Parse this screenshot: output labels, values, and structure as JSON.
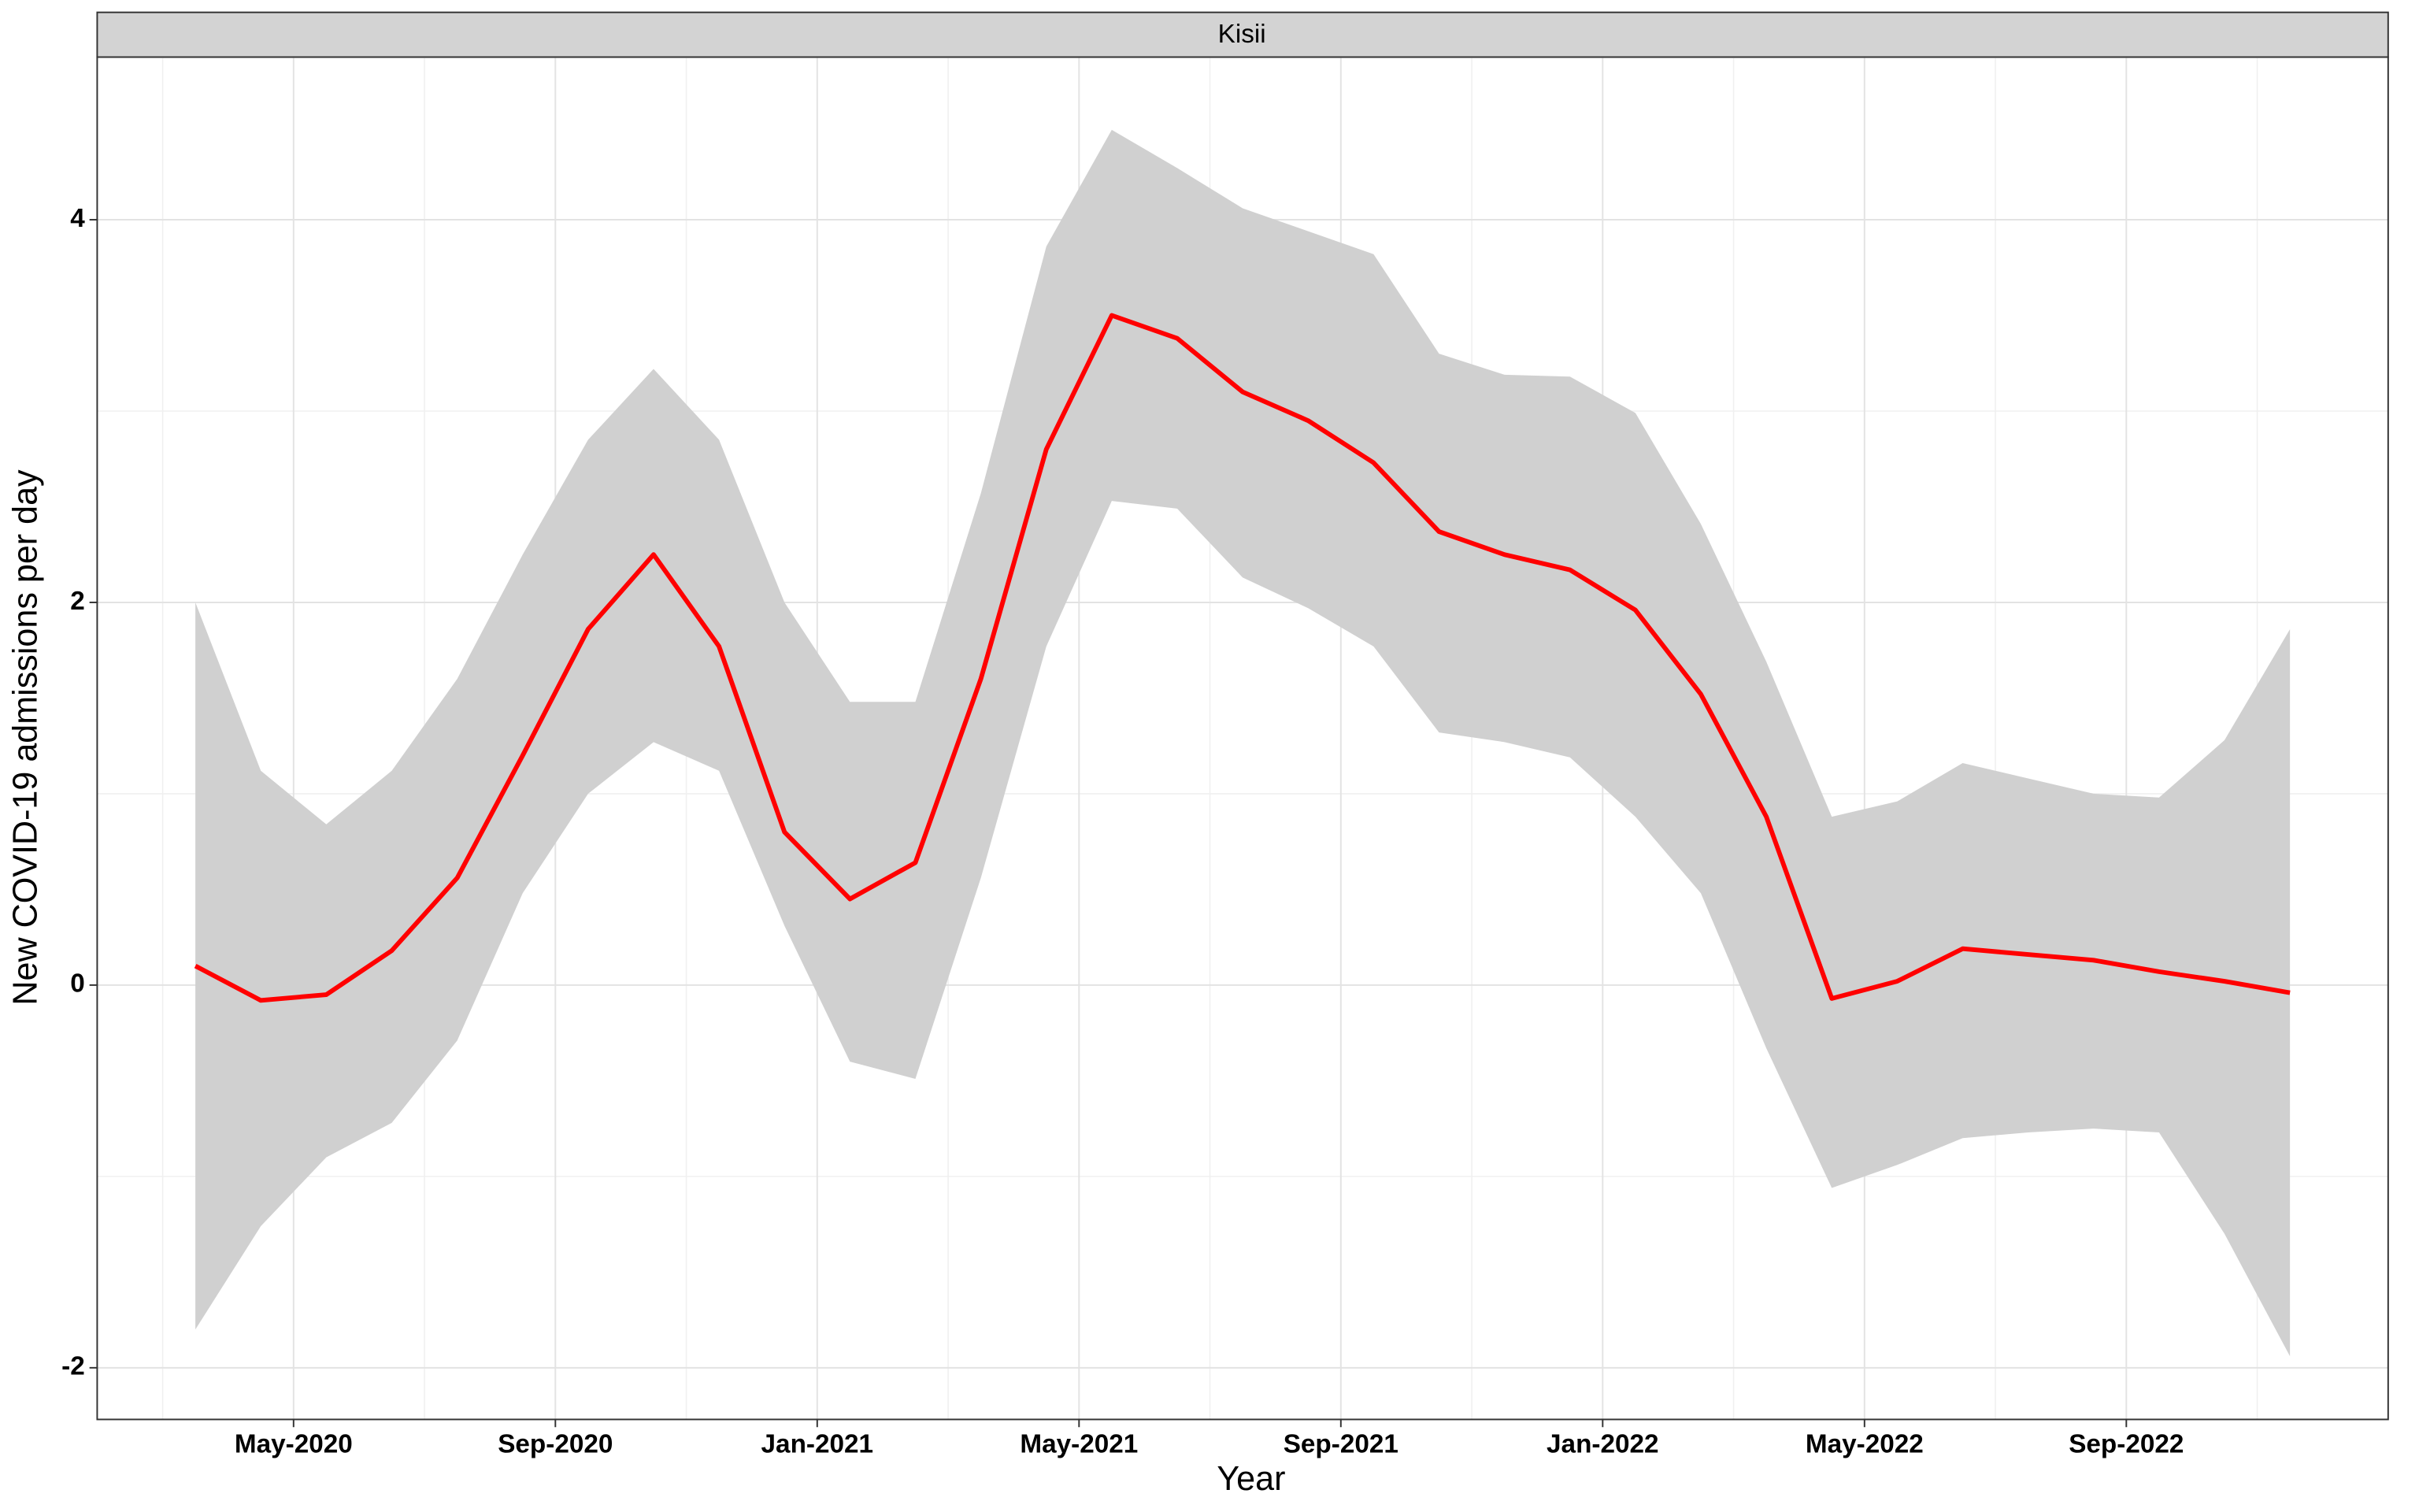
{
  "chart_data": {
    "type": "ribbon_line",
    "facet": "Kisii",
    "x_label": "Year",
    "y_label": "New COVID-19 admissions per day",
    "x": [
      "2020-03",
      "2020-04",
      "2020-05",
      "2020-06",
      "2020-07",
      "2020-08",
      "2020-09",
      "2020-10",
      "2020-11",
      "2020-12",
      "2021-01",
      "2021-02",
      "2021-03",
      "2021-04",
      "2021-05",
      "2021-06",
      "2021-07",
      "2021-08",
      "2021-09",
      "2021-10",
      "2021-11",
      "2021-12",
      "2022-01",
      "2022-02",
      "2022-03",
      "2022-04",
      "2022-05",
      "2022-06",
      "2022-07",
      "2022-08",
      "2022-09",
      "2022-10",
      "2022-11"
    ],
    "values": [
      0.1,
      -0.08,
      -0.05,
      0.18,
      0.56,
      1.2,
      1.86,
      2.25,
      1.77,
      0.8,
      0.45,
      0.64,
      1.6,
      2.8,
      3.5,
      3.38,
      3.1,
      2.95,
      2.73,
      2.37,
      2.25,
      2.17,
      1.96,
      1.52,
      0.88,
      -0.07,
      0.02,
      0.19,
      0.16,
      0.13,
      0.07,
      0.02,
      -0.04
    ],
    "upper": [
      2.0,
      1.12,
      0.84,
      1.12,
      1.6,
      2.25,
      2.85,
      3.22,
      2.85,
      2.0,
      1.48,
      1.48,
      2.57,
      3.86,
      4.47,
      4.27,
      4.06,
      3.94,
      3.82,
      3.3,
      3.19,
      3.18,
      2.99,
      2.41,
      1.69,
      0.88,
      0.96,
      1.16,
      1.08,
      1.0,
      0.98,
      1.28,
      1.86
    ],
    "lower": [
      -1.8,
      -1.26,
      -0.9,
      -0.72,
      -0.29,
      0.48,
      1.0,
      1.27,
      1.12,
      0.31,
      -0.4,
      -0.49,
      0.56,
      1.77,
      2.53,
      2.49,
      2.13,
      1.97,
      1.77,
      1.32,
      1.27,
      1.19,
      0.88,
      0.48,
      -0.33,
      -1.06,
      -0.94,
      -0.8,
      -0.77,
      -0.75,
      -0.77,
      -1.3,
      -1.94
    ],
    "color": "#ff0000",
    "band_color": "#d0d0d0",
    "xlim": [
      "2020-02",
      "2022-12"
    ],
    "ylim": [
      -2.27,
      4.85
    ],
    "xticks": [
      {
        "value": "2020-05",
        "label": "May-2020"
      },
      {
        "value": "2020-09",
        "label": "Sep-2020"
      },
      {
        "value": "2021-01",
        "label": "Jan-2021"
      },
      {
        "value": "2021-05",
        "label": "May-2021"
      },
      {
        "value": "2021-09",
        "label": "Sep-2021"
      },
      {
        "value": "2022-01",
        "label": "Jan-2022"
      },
      {
        "value": "2022-05",
        "label": "May-2022"
      },
      {
        "value": "2022-09",
        "label": "Sep-2022"
      }
    ],
    "xminor": [
      "2020-03",
      "2020-07",
      "2020-11",
      "2021-03",
      "2021-07",
      "2021-11",
      "2022-03",
      "2022-07",
      "2022-11"
    ],
    "yticks": [
      -2,
      0,
      2,
      4
    ],
    "yminor": [
      -1,
      1,
      3
    ],
    "grid": true
  }
}
